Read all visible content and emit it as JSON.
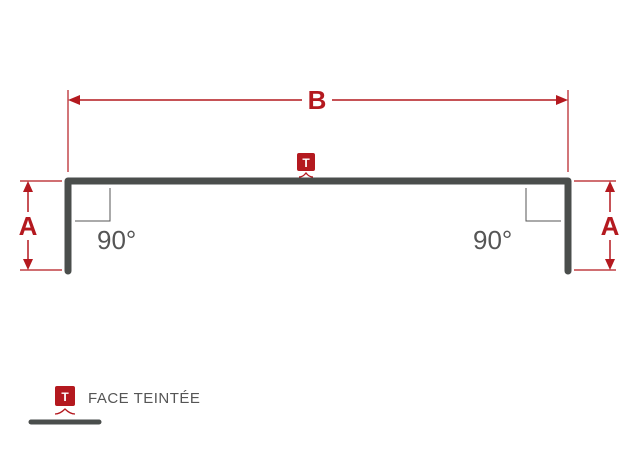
{
  "diagram": {
    "dimension_b": "B",
    "dimension_a_left": "A",
    "dimension_a_right": "A",
    "angle_left": "90°",
    "angle_right": "90°",
    "tinted_face_marker": "T"
  },
  "legend": {
    "marker": "T",
    "label": "FACE TEINTÉE"
  },
  "colors": {
    "accent": "#b4191f",
    "profile": "#4a4e4c",
    "annotation": "#555555"
  }
}
